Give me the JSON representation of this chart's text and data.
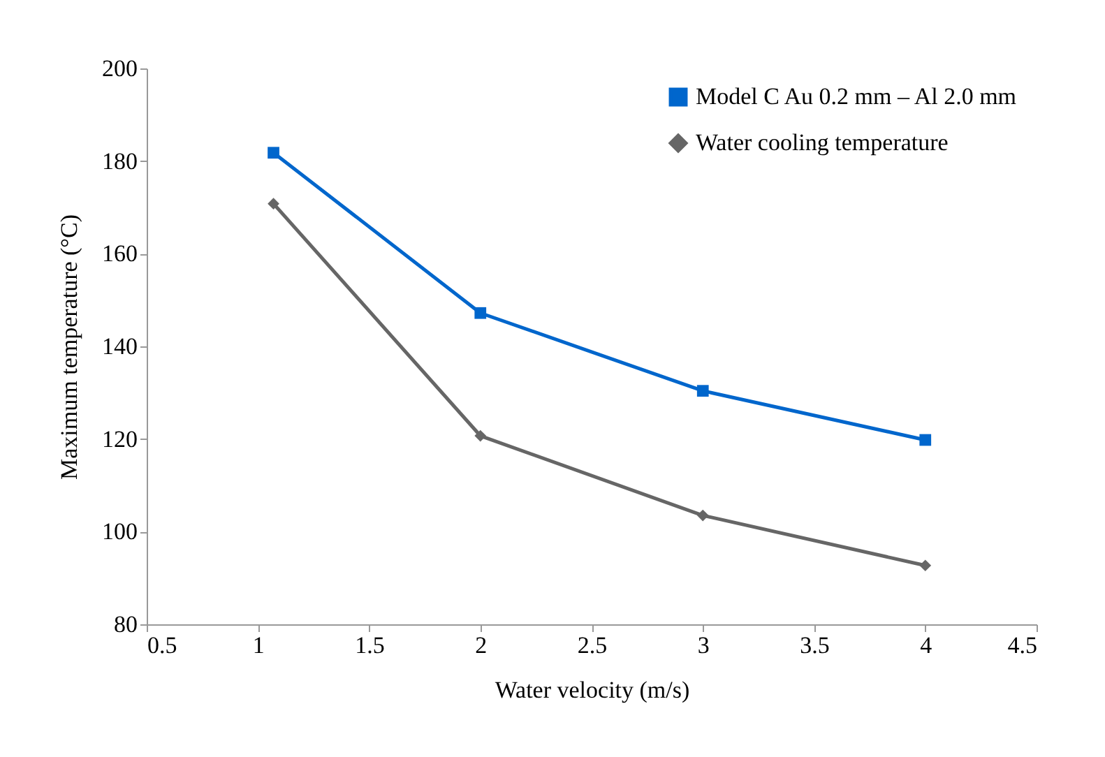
{
  "chart_data": {
    "type": "line",
    "xlabel": "Water velocity (m/s)",
    "ylabel": "Maximum temperature (°C)",
    "x": [
      1.07,
      2,
      3,
      4
    ],
    "series": [
      {
        "name": "Model C Au 0.2 mm – Al 2.0 mm",
        "color": "#0066cc",
        "marker": "square",
        "values": [
          181.8,
          147.2,
          130.4,
          119.8
        ]
      },
      {
        "name": "Water cooling temperature",
        "color": "#666666",
        "marker": "diamond",
        "values": [
          170.8,
          120.7,
          103.5,
          92.7
        ]
      }
    ],
    "xlim": [
      0.5,
      4.5
    ],
    "xticks": [
      0.5,
      1,
      1.5,
      2,
      2.5,
      3,
      3.5,
      4,
      4.5
    ],
    "ylim": [
      80,
      200
    ],
    "yticks": [
      80,
      100,
      120,
      140,
      160,
      180,
      200
    ],
    "grid": false,
    "legend": "top right",
    "line_style": "solid"
  }
}
